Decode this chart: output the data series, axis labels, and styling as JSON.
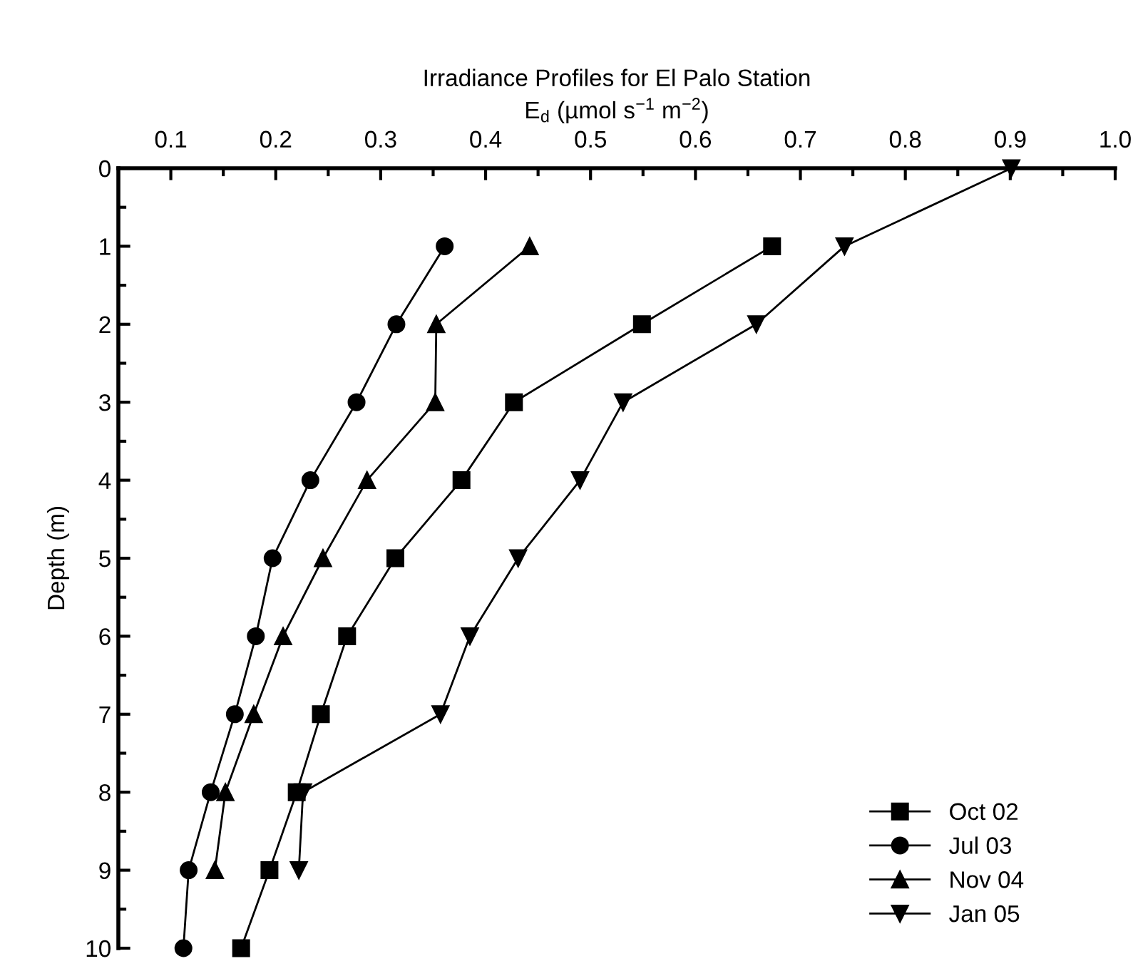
{
  "chart_data": {
    "type": "line",
    "title": "Irradiance Profiles for El Palo Station",
    "xlabel": "E$_{d}$ (µmol s$^{−1}$ m$^{−2}$)",
    "ylabel": "Depth (m)",
    "xlim": [
      0.05,
      1.0
    ],
    "ylim": [
      10,
      0
    ],
    "xticks": [
      0.1,
      0.2,
      0.3,
      0.4,
      0.5,
      0.6,
      0.7,
      0.8,
      0.9,
      {
        "value": 1.0,
        "label": "1.0"
      },
      {
        "value": 0.15,
        "label": null
      },
      {
        "value": 0.25,
        "label": null
      },
      {
        "value": 0.35,
        "label": null
      },
      {
        "value": 0.45,
        "label": null
      },
      {
        "value": 0.55,
        "label": null
      },
      {
        "value": 0.65,
        "label": null
      },
      {
        "value": 0.75,
        "label": null
      },
      {
        "value": 0.85,
        "label": null
      },
      {
        "value": 0.95,
        "label": null
      }
    ],
    "yticks": [
      0,
      1,
      2,
      3,
      4,
      5,
      6,
      7,
      8,
      9,
      10,
      {
        "value": 0.5,
        "label": null
      },
      {
        "value": 1.5,
        "label": null
      },
      {
        "value": 2.5,
        "label": null
      },
      {
        "value": 3.5,
        "label": null
      },
      {
        "value": 4.5,
        "label": null
      },
      {
        "value": 5.5,
        "label": null
      },
      {
        "value": 6.5,
        "label": null
      },
      {
        "value": 7.5,
        "label": null
      },
      {
        "value": 8.5,
        "label": null
      },
      {
        "value": 9.5,
        "label": null
      }
    ],
    "grid": false,
    "legend": "bottom right",
    "series": [
      {
        "name": "Oct 02",
        "color": "#000000",
        "marker": "square",
        "x": [
          0.673,
          0.549,
          0.427,
          0.377,
          0.314,
          0.268,
          0.243,
          0.22,
          0.194,
          0.167
        ],
        "values": [
          1,
          2,
          3,
          4,
          5,
          6,
          7,
          8,
          9,
          10
        ]
      },
      {
        "name": "Jul 03",
        "color": "#000000",
        "marker": "circle",
        "x": [
          0.361,
          0.315,
          0.277,
          0.233,
          0.197,
          0.181,
          0.161,
          0.138,
          0.117,
          0.112
        ],
        "values": [
          1,
          2,
          3,
          4,
          5,
          6,
          7,
          8,
          9,
          10
        ]
      },
      {
        "name": "Nov 04",
        "color": "#000000",
        "marker": "triangle",
        "x": [
          0.442,
          0.353,
          0.352,
          0.287,
          0.245,
          0.207,
          0.179,
          0.152,
          0.142
        ],
        "values": [
          1,
          2,
          3,
          4,
          5,
          6,
          7,
          8,
          9
        ]
      },
      {
        "name": "Jan 05",
        "color": "#000000",
        "marker": "triangle_down",
        "x": [
          0.901,
          0.742,
          0.658,
          0.531,
          0.49,
          0.431,
          0.385,
          0.357,
          0.226,
          0.222
        ],
        "values": [
          0,
          1,
          2,
          3,
          4,
          5,
          6,
          7,
          8,
          9
        ]
      }
    ]
  }
}
